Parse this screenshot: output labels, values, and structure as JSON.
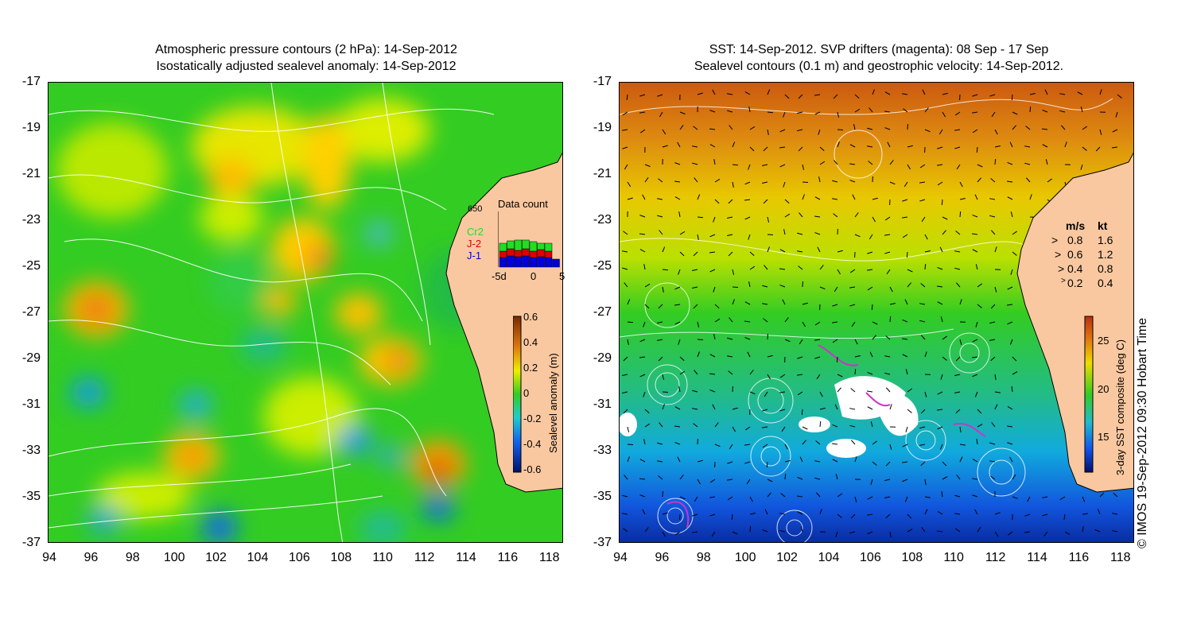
{
  "left_panel": {
    "title_line1": "Atmospheric pressure contours (2 hPa): 14-Sep-2012",
    "title_line2": "Isostatically adjusted sealevel anomaly: 14-Sep-2012",
    "colorbar": {
      "label": "Sealevel anomaly (m)",
      "ticks": [
        "0.6",
        "0.4",
        "0.2",
        "0",
        "-0.2",
        "-0.4",
        "-0.6"
      ]
    },
    "data_count": {
      "title": "Data count",
      "max_label": "650",
      "legend": [
        {
          "label": "Cr2",
          "color": "#22dd22"
        },
        {
          "label": "J-2",
          "color": "#dd0000"
        },
        {
          "label": "J-1",
          "color": "#0000dd"
        }
      ],
      "x_ticks": [
        "-5d",
        "0",
        "5"
      ]
    }
  },
  "right_panel": {
    "title_line1": "SST: 14-Sep-2012. SVP drifters (magenta): 08 Sep - 17 Sep",
    "title_line2": "Sealevel contours (0.1 m) and geostrophic velocity: 14-Sep-2012.",
    "colorbar": {
      "label": "3-day SST composite (deg C)",
      "ticks": [
        "25",
        "20",
        "15"
      ]
    },
    "velocity_key": {
      "header_ms": "m/s",
      "header_kt": "kt",
      "rows": [
        {
          "ms": "0.8",
          "kt": "1.6"
        },
        {
          "ms": "0.6",
          "kt": "1.2"
        },
        {
          "ms": "0.4",
          "kt": "0.8"
        },
        {
          "ms": "0.2",
          "kt": "0.4"
        }
      ]
    }
  },
  "axes": {
    "y_ticks": [
      "-17",
      "-19",
      "-21",
      "-23",
      "-25",
      "-27",
      "-29",
      "-31",
      "-33",
      "-35",
      "-37"
    ],
    "x_ticks": [
      "94",
      "96",
      "98",
      "100",
      "102",
      "104",
      "106",
      "108",
      "110",
      "112",
      "114",
      "116",
      "118"
    ]
  },
  "copyright": "© IMOS 19-Sep-2012 09:30 Hobart Time",
  "colors": {
    "land": "#f9c8a0",
    "drifters": "#cc33cc"
  }
}
